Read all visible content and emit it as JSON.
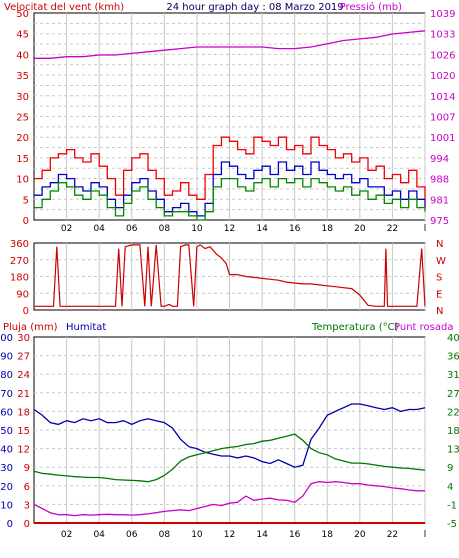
{
  "chart_data": [
    {
      "type": "line",
      "title": "24 hour graph day : 08 Marzo 2019",
      "ylabel_left": "Velocitat del vent (kmh)",
      "ylabel_right": "Pressió (mb)",
      "x_ticks": [
        "02",
        "04",
        "06",
        "08",
        "10",
        "12",
        "14",
        "16",
        "18",
        "20",
        "22",
        "l"
      ],
      "xlim": [
        0,
        24
      ],
      "ylim_left": [
        0,
        50
      ],
      "left_ticks": [
        "0",
        "2.5",
        "5",
        "7.5",
        "10",
        "12.5",
        "15",
        "17.5",
        "20",
        "22.5",
        "25",
        "27.5",
        "30",
        "32.5",
        "35",
        "37.5",
        "40",
        "42.5",
        "45",
        "47.5",
        "50"
      ],
      "left_tick_labels": [
        "0",
        "5",
        "10",
        "15",
        "20",
        "25",
        "30",
        "35",
        "40",
        "45",
        "50"
      ],
      "ylim_right": [
        975,
        1039
      ],
      "right_tick_labels": [
        "975",
        "981",
        "988",
        "994",
        "1001",
        "1007",
        "1014",
        "1020",
        "1026",
        "1033",
        "1039"
      ],
      "grid": true,
      "colors": {
        "gust": "#ee0000",
        "speed": "#0000cc",
        "avg": "#008800",
        "pressure": "#cc00cc",
        "title": "#000066",
        "axis_left": "#cc0000",
        "axis_right": "#cc00cc"
      },
      "series": [
        {
          "name": "pressure",
          "axis": "right",
          "color": "#cc00cc",
          "x": [
            0,
            1,
            2,
            3,
            4,
            5,
            6,
            7,
            8,
            9,
            10,
            11,
            12,
            13,
            14,
            15,
            16,
            17,
            18,
            19,
            20,
            21,
            22,
            23,
            24
          ],
          "values": [
            1025,
            1025,
            1025.5,
            1025.5,
            1026,
            1026,
            1026.5,
            1027,
            1027.5,
            1028,
            1028.5,
            1028.5,
            1028.5,
            1028.5,
            1028.5,
            1028,
            1028,
            1028.5,
            1029.5,
            1030.5,
            1031,
            1031.5,
            1032.5,
            1033,
            1033.5
          ]
        },
        {
          "name": "gust",
          "axis": "left",
          "color": "#ee0000",
          "x": [
            0,
            0.5,
            1,
            1.5,
            2,
            2.5,
            3,
            3.5,
            4,
            4.5,
            5,
            5.5,
            6,
            6.5,
            7,
            7.5,
            8,
            8.5,
            9,
            9.5,
            10,
            10.5,
            11,
            11.5,
            12,
            12.5,
            13,
            13.5,
            14,
            14.5,
            15,
            15.5,
            16,
            16.5,
            17,
            17.5,
            18,
            18.5,
            19,
            19.5,
            20,
            20.5,
            21,
            21.5,
            22,
            22.5,
            23,
            23.5,
            24
          ],
          "values": [
            10,
            12,
            15,
            16,
            17,
            15,
            14,
            16,
            13,
            10,
            6,
            12,
            15,
            16,
            12,
            10,
            6,
            7,
            9,
            6,
            5,
            11,
            18,
            20,
            19,
            17,
            16,
            20,
            19,
            18,
            20,
            17,
            18,
            16,
            20,
            18,
            17,
            15,
            16,
            14,
            15,
            12,
            13,
            10,
            11,
            9,
            12,
            8,
            5
          ]
        },
        {
          "name": "speed",
          "axis": "left",
          "color": "#0000cc",
          "x": [
            0,
            0.5,
            1,
            1.5,
            2,
            2.5,
            3,
            3.5,
            4,
            4.5,
            5,
            5.5,
            6,
            6.5,
            7,
            7.5,
            8,
            8.5,
            9,
            9.5,
            10,
            10.5,
            11,
            11.5,
            12,
            12.5,
            13,
            13.5,
            14,
            14.5,
            15,
            15.5,
            16,
            16.5,
            17,
            17.5,
            18,
            18.5,
            19,
            19.5,
            20,
            20.5,
            21,
            21.5,
            22,
            22.5,
            23,
            23.5,
            24
          ],
          "values": [
            6,
            8,
            9,
            11,
            10,
            8,
            7,
            9,
            8,
            5,
            3,
            6,
            9,
            10,
            7,
            5,
            2,
            3,
            4,
            2,
            1,
            4,
            11,
            14,
            13,
            11,
            10,
            12,
            13,
            11,
            14,
            12,
            13,
            11,
            14,
            12,
            11,
            10,
            11,
            9,
            10,
            8,
            8,
            6,
            7,
            5,
            7,
            5,
            3
          ]
        },
        {
          "name": "avg",
          "axis": "left",
          "color": "#008800",
          "x": [
            0,
            0.5,
            1,
            1.5,
            2,
            2.5,
            3,
            3.5,
            4,
            4.5,
            5,
            5.5,
            6,
            6.5,
            7,
            7.5,
            8,
            8.5,
            9,
            9.5,
            10,
            10.5,
            11,
            11.5,
            12,
            12.5,
            13,
            13.5,
            14,
            14.5,
            15,
            15.5,
            16,
            16.5,
            17,
            17.5,
            18,
            18.5,
            19,
            19.5,
            20,
            20.5,
            21,
            21.5,
            22,
            22.5,
            23,
            23.5,
            24
          ],
          "values": [
            3,
            5,
            7,
            9,
            8,
            6,
            5,
            7,
            6,
            3,
            1,
            4,
            7,
            8,
            5,
            3,
            1,
            2,
            2,
            1,
            0,
            2,
            8,
            10,
            10,
            8,
            7,
            9,
            10,
            8,
            10,
            9,
            10,
            8,
            10,
            9,
            8,
            7,
            8,
            6,
            7,
            5,
            6,
            4,
            5,
            3,
            5,
            3,
            2
          ]
        }
      ]
    },
    {
      "type": "line",
      "ylabel_left": "Direcció (°)",
      "ylim": [
        0,
        360
      ],
      "left_tick_labels": [
        "0",
        "90",
        "180",
        "270",
        "360"
      ],
      "right_tick_labels": [
        "N",
        "E",
        "S",
        "W",
        "N"
      ],
      "color": "#cc0000",
      "x_ticks": [
        "02",
        "04",
        "06",
        "08",
        "10",
        "12",
        "14",
        "16",
        "18",
        "20",
        "22",
        "l"
      ],
      "xlim": [
        0,
        24
      ],
      "series": [
        {
          "name": "direction",
          "x": [
            0,
            0.5,
            1,
            1.2,
            1.4,
            1.6,
            2,
            2.5,
            3,
            3.5,
            4,
            4.5,
            4.8,
            5,
            5.2,
            5.4,
            5.6,
            6,
            6.5,
            6.8,
            7,
            7.2,
            7.5,
            7.8,
            8,
            8.3,
            8.5,
            8.8,
            9,
            9.3,
            9.5,
            9.8,
            10,
            10.2,
            10.5,
            10.8,
            11,
            11.2,
            11.5,
            11.8,
            12,
            12.5,
            13,
            13.5,
            14,
            14.5,
            15,
            15.5,
            16,
            16.5,
            17,
            17.5,
            18,
            18.5,
            19,
            19.5,
            20,
            20.5,
            21,
            21.5,
            21.6,
            21.7,
            22,
            22.5,
            23,
            23.5,
            23.8,
            24
          ],
          "values": [
            20,
            20,
            20,
            20,
            340,
            20,
            20,
            20,
            20,
            20,
            20,
            20,
            20,
            20,
            330,
            20,
            340,
            350,
            350,
            20,
            340,
            20,
            350,
            20,
            20,
            30,
            20,
            20,
            340,
            350,
            350,
            20,
            340,
            350,
            330,
            340,
            320,
            300,
            280,
            250,
            190,
            190,
            180,
            175,
            170,
            165,
            160,
            150,
            145,
            140,
            140,
            135,
            130,
            125,
            120,
            115,
            80,
            25,
            20,
            20,
            330,
            20,
            20,
            20,
            20,
            20,
            330,
            20
          ]
        }
      ]
    },
    {
      "type": "line",
      "ylabel_rain": "Pluja (mm)",
      "ylabel_hum": "Humitat",
      "ylabel_temp": "Temperatura (°C)",
      "ylabel_dew": "Punt rosada",
      "x_ticks": [
        "02",
        "04",
        "06",
        "08",
        "10",
        "12",
        "14",
        "16",
        "18",
        "20",
        "22",
        "l"
      ],
      "xlim": [
        0,
        24
      ],
      "humidity_ticks": [
        "0",
        "10",
        "20",
        "30",
        "40",
        "50",
        "60",
        "70",
        "80",
        "90",
        "100"
      ],
      "rain_ticks": [
        "0",
        "3",
        "6",
        "9",
        "12",
        "15",
        "18",
        "21",
        "24",
        "27",
        "30"
      ],
      "temp_ticks": [
        "-5",
        "-1",
        "4",
        "9",
        "13",
        "18",
        "22",
        "27",
        "31",
        "36",
        "40"
      ],
      "ylim_humidity": [
        0,
        100
      ],
      "ylim_temp": [
        -5,
        40
      ],
      "colors": {
        "rain": "#cc0000",
        "humidity": "#0000aa",
        "temperature": "#007700",
        "dew": "#cc00cc"
      },
      "series": [
        {
          "name": "Humitat",
          "axis": "humidity",
          "color": "#0000aa",
          "x": [
            0,
            0.5,
            1,
            1.5,
            2,
            2.5,
            3,
            3.5,
            4,
            4.5,
            5,
            5.5,
            6,
            6.5,
            7,
            7.5,
            8,
            8.5,
            9,
            9.5,
            10,
            10.5,
            11,
            11.5,
            12,
            12.5,
            13,
            13.5,
            14,
            14.5,
            15,
            15.5,
            16,
            16.5,
            17,
            17.5,
            18,
            18.5,
            19,
            19.5,
            20,
            20.5,
            21,
            21.5,
            22,
            22.5,
            23,
            23.5,
            24
          ],
          "values": [
            61,
            58,
            54,
            53,
            55,
            54,
            56,
            55,
            56,
            54,
            54,
            55,
            53,
            55,
            56,
            55,
            54,
            51,
            45,
            41,
            40,
            38,
            37,
            36,
            36,
            35,
            36,
            35,
            33,
            32,
            34,
            32,
            30,
            31,
            45,
            51,
            58,
            60,
            62,
            64,
            64,
            63,
            62,
            61,
            62,
            60,
            61,
            61,
            62
          ]
        },
        {
          "name": "Temperatura",
          "axis": "temperature",
          "color": "#007700",
          "x": [
            0,
            0.5,
            1,
            1.5,
            2,
            2.5,
            3,
            3.5,
            4,
            4.5,
            5,
            5.5,
            6,
            6.5,
            7,
            7.5,
            8,
            8.5,
            9,
            9.5,
            10,
            10.5,
            11,
            11.5,
            12,
            12.5,
            13,
            13.5,
            14,
            14.5,
            15,
            15.5,
            16,
            16.5,
            17,
            17.5,
            18,
            18.5,
            19,
            19.5,
            20,
            20.5,
            21,
            21.5,
            22,
            22.5,
            23,
            23.5,
            24
          ],
          "values": [
            7.5,
            7,
            6.8,
            6.6,
            6.4,
            6.2,
            6.1,
            6,
            6,
            5.8,
            5.5,
            5.4,
            5.3,
            5.2,
            5,
            5.5,
            6.5,
            8,
            10,
            11,
            11.5,
            12,
            12.5,
            13,
            13.3,
            13.5,
            14,
            14.2,
            14.8,
            15,
            15.5,
            16,
            16.5,
            15,
            13,
            12,
            11.5,
            10.5,
            10,
            9.5,
            9.5,
            9.3,
            9,
            8.7,
            8.5,
            8.3,
            8.2,
            8,
            7.8
          ]
        },
        {
          "name": "Punt rosada",
          "axis": "temperature",
          "color": "#cc00cc",
          "x": [
            0,
            0.5,
            1,
            1.5,
            2,
            2.5,
            3,
            3.5,
            4,
            4.5,
            5,
            5.5,
            6,
            6.5,
            7,
            7.5,
            8,
            8.5,
            9,
            9.5,
            10,
            10.5,
            11,
            11.5,
            12,
            12.5,
            13,
            13.5,
            14,
            14.5,
            15,
            15.5,
            16,
            16.5,
            17,
            17.5,
            18,
            18.5,
            19,
            19.5,
            20,
            20.5,
            21,
            21.5,
            22,
            22.5,
            23,
            23.5,
            24
          ],
          "values": [
            -0.5,
            -1.5,
            -2.5,
            -3,
            -3,
            -3.2,
            -3,
            -3.1,
            -3,
            -2.9,
            -3,
            -3,
            -3.1,
            -3,
            -2.8,
            -2.5,
            -2.2,
            -2,
            -1.8,
            -2,
            -1.5,
            -1,
            -0.5,
            -0.8,
            -0.2,
            0,
            1.5,
            0.5,
            0.8,
            1,
            0.6,
            0.5,
            0,
            1.5,
            4.5,
            5,
            4.8,
            5,
            4.8,
            4.5,
            4.5,
            4.2,
            4,
            3.8,
            3.5,
            3.3,
            3,
            2.8,
            2.8
          ]
        },
        {
          "name": "Pluja",
          "axis": "rain",
          "color": "#cc0000",
          "x": [
            0,
            24
          ],
          "values": [
            0,
            0
          ]
        }
      ]
    }
  ]
}
